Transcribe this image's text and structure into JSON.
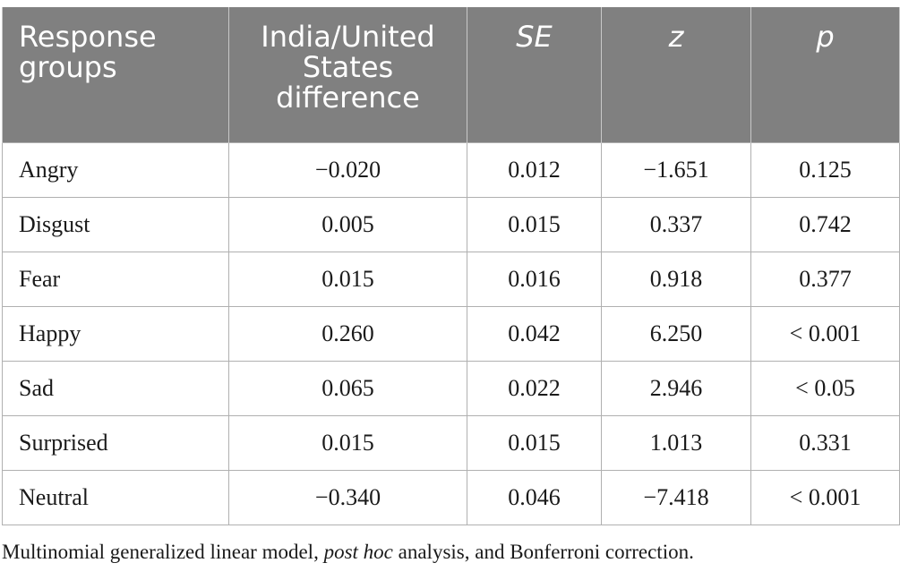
{
  "table": {
    "headers": [
      {
        "label": "Response groups",
        "align": "left",
        "italic": false
      },
      {
        "label": "India/United States difference",
        "align": "center",
        "italic": false
      },
      {
        "label": "SE",
        "align": "center",
        "italic": true
      },
      {
        "label": "z",
        "align": "center",
        "italic": true
      },
      {
        "label": "p",
        "align": "center",
        "italic": true
      }
    ],
    "rows": [
      {
        "group": "Angry",
        "difference": "−0.020",
        "se": "0.012",
        "z": "−1.651",
        "p": "0.125"
      },
      {
        "group": "Disgust",
        "difference": "0.005",
        "se": "0.015",
        "z": "0.337",
        "p": "0.742"
      },
      {
        "group": "Fear",
        "difference": "0.015",
        "se": "0.016",
        "z": "0.918",
        "p": "0.377"
      },
      {
        "group": "Happy",
        "difference": "0.260",
        "se": "0.042",
        "z": "6.250",
        "p": "< 0.001"
      },
      {
        "group": "Sad",
        "difference": "0.065",
        "se": "0.022",
        "z": "2.946",
        "p": "< 0.05"
      },
      {
        "group": "Surprised",
        "difference": "0.015",
        "se": "0.015",
        "z": "1.013",
        "p": "0.331"
      },
      {
        "group": "Neutral",
        "difference": "−0.340",
        "se": "0.046",
        "z": "−7.418",
        "p": "< 0.001"
      }
    ]
  },
  "caption": {
    "before": "Multinomial generalized linear model, ",
    "italic": "post hoc",
    "after": " analysis, and Bonferroni correction."
  },
  "colors": {
    "header_background": "#808080",
    "header_text": "#ffffff",
    "grid": "#b0b0b0"
  }
}
